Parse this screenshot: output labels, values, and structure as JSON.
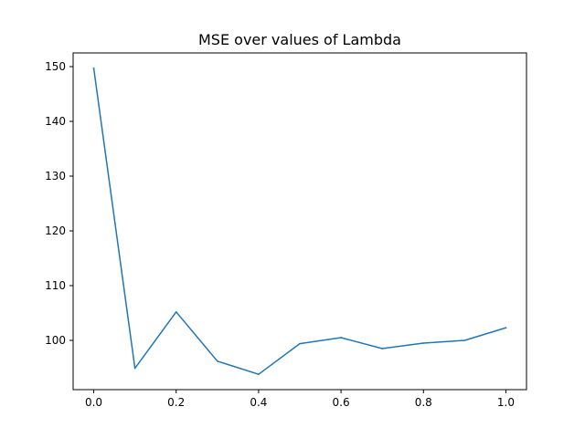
{
  "chart_data": {
    "type": "line",
    "title": "MSE over values of Lambda",
    "xlabel": "",
    "ylabel": "",
    "x": [
      0.0,
      0.1,
      0.2,
      0.3,
      0.4,
      0.5,
      0.6,
      0.7,
      0.8,
      0.9,
      1.0
    ],
    "series": [
      {
        "values": [
          149.7,
          94.9,
          105.2,
          96.2,
          93.8,
          99.4,
          100.5,
          98.5,
          99.5,
          100.0,
          102.3
        ],
        "color": "#1f77b4"
      }
    ],
    "xlim": [
      -0.05,
      1.05
    ],
    "ylim": [
      91.0,
      152.5
    ],
    "x_ticks": [
      0.0,
      0.2,
      0.4,
      0.6,
      0.8,
      1.0
    ],
    "x_tick_labels": [
      "0.0",
      "0.2",
      "0.4",
      "0.6",
      "0.8",
      "1.0"
    ],
    "y_ticks": [
      100,
      110,
      120,
      130,
      140,
      150
    ],
    "y_tick_labels": [
      "100",
      "110",
      "120",
      "130",
      "140",
      "150"
    ],
    "grid": false,
    "legend": "none"
  }
}
